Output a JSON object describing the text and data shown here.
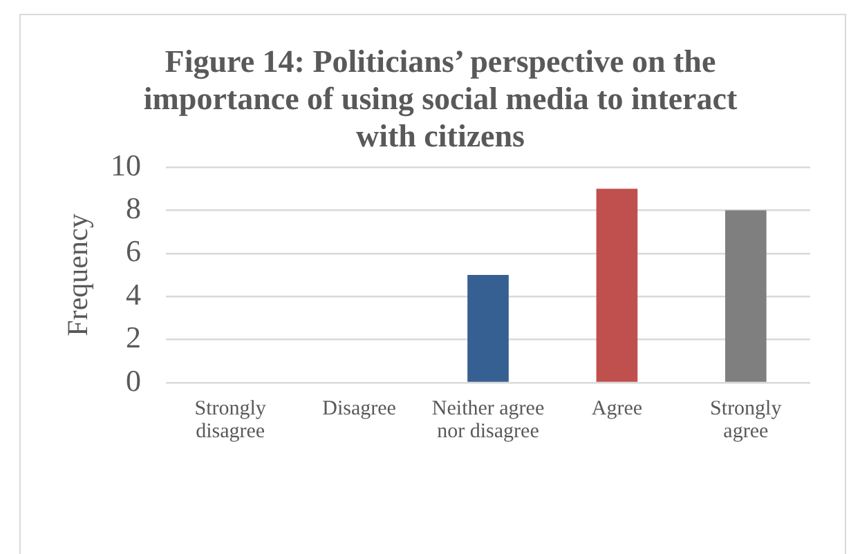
{
  "chart_data": {
    "type": "bar",
    "title": "Figure 14: Politicians’ perspective on the importance of using social media to interact with citizens",
    "ylabel": "Frequency",
    "categories": [
      "Strongly disagree",
      "Disagree",
      "Neither agree nor disagree",
      "Agree",
      "Strongly agree"
    ],
    "values": [
      0,
      0,
      5,
      9,
      8
    ],
    "colors": [
      null,
      null,
      "#376092",
      "#c0504d",
      "#7f7f7f"
    ],
    "ylim": [
      0,
      10
    ],
    "yticks": [
      0,
      2,
      4,
      6,
      8,
      10
    ],
    "grid": "y",
    "legend": false
  }
}
